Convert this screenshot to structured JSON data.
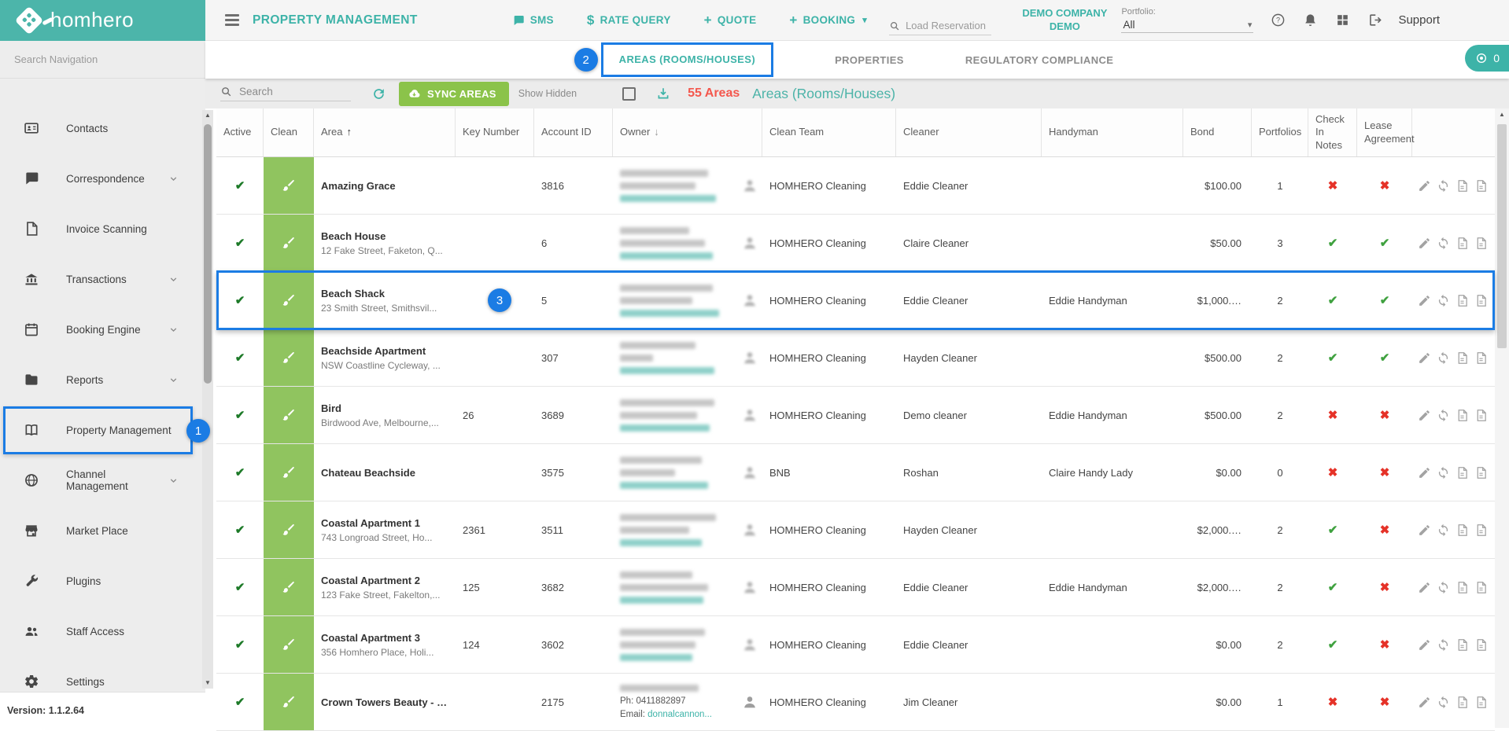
{
  "brand": {
    "name": "homhero"
  },
  "header": {
    "module_title": "PROPERTY MANAGEMENT",
    "nav": [
      {
        "label": "SMS",
        "icon": "chat-icon"
      },
      {
        "label": "RATE QUERY",
        "icon": "dollar-icon"
      },
      {
        "label": "QUOTE",
        "icon": "plus-icon"
      },
      {
        "label": "BOOKING",
        "icon": "plus-icon",
        "caret": true
      }
    ],
    "load_reservation_placeholder": "Load Reservation",
    "company_name": "DEMO COMPANY",
    "company_sub": "DEMO",
    "portfolio_label": "Portfolio:",
    "portfolio_value": "All",
    "support_label": "Support"
  },
  "sidebar": {
    "search_placeholder": "Search Navigation",
    "items": [
      {
        "label": "Contacts",
        "icon": "contacts-icon",
        "expandable": false
      },
      {
        "label": "Correspondence",
        "icon": "chat-icon",
        "expandable": true
      },
      {
        "label": "Invoice Scanning",
        "icon": "document-icon",
        "expandable": false
      },
      {
        "label": "Transactions",
        "icon": "bank-icon",
        "expandable": true
      },
      {
        "label": "Booking Engine",
        "icon": "calendar-icon",
        "expandable": true
      },
      {
        "label": "Reports",
        "icon": "folder-icon",
        "expandable": true
      },
      {
        "label": "Property Management",
        "icon": "book-icon",
        "expandable": false,
        "active": true
      },
      {
        "label": "Channel Management",
        "icon": "globe-icon",
        "expandable": true
      },
      {
        "label": "Market Place",
        "icon": "store-icon",
        "expandable": false
      },
      {
        "label": "Plugins",
        "icon": "wrench-icon",
        "expandable": false
      },
      {
        "label": "Staff Access",
        "icon": "people-icon",
        "expandable": false
      },
      {
        "label": "Settings",
        "icon": "gear-icon",
        "expandable": false
      }
    ],
    "version": "Version: 1.1.2.64"
  },
  "tabs": [
    {
      "label": "AREAS (ROOMS/HOUSES)",
      "active": true
    },
    {
      "label": "PROPERTIES",
      "active": false
    },
    {
      "label": "REGULATORY COMPLIANCE",
      "active": false
    }
  ],
  "badge": {
    "value": "0"
  },
  "toolbar": {
    "search_placeholder": "Search",
    "sync_button": "SYNC AREAS",
    "show_hidden_label": "Show Hidden",
    "count_label": "55 Areas",
    "section_title": "Areas (Rooms/Houses)"
  },
  "table": {
    "columns": [
      {
        "label": "Active"
      },
      {
        "label": "Clean"
      },
      {
        "label": "Area",
        "sort": "asc"
      },
      {
        "label": "Key Number"
      },
      {
        "label": "Account ID"
      },
      {
        "label": "Owner",
        "sort": "desc"
      },
      {
        "label": "Clean Team"
      },
      {
        "label": "Cleaner"
      },
      {
        "label": "Handyman"
      },
      {
        "label": "Bond"
      },
      {
        "label": "Portfolios"
      },
      {
        "label": "Check In Notes"
      },
      {
        "label": "Lease Agreement"
      },
      {
        "label": ""
      }
    ],
    "rows": [
      {
        "name": "Amazing Grace",
        "address": "",
        "key": "",
        "account": "3816",
        "owner": {
          "redacted": true
        },
        "clean_team": "HOMHERO Cleaning",
        "cleaner": "Eddie Cleaner",
        "handyman": "",
        "bond": "$100.00",
        "portfolios": "1",
        "check_in": "no",
        "lease": "no",
        "highlighted": false
      },
      {
        "name": "Beach House",
        "address": "12 Fake Street, Faketon, Q...",
        "key": "",
        "account": "6",
        "owner": {
          "redacted": true
        },
        "clean_team": "HOMHERO Cleaning",
        "cleaner": "Claire Cleaner",
        "handyman": "",
        "bond": "$50.00",
        "portfolios": "3",
        "check_in": "yes",
        "lease": "yes",
        "highlighted": false
      },
      {
        "name": "Beach Shack",
        "address": "23 Smith Street, Smithsvil...",
        "key": "",
        "account": "5",
        "owner": {
          "redacted": true
        },
        "clean_team": "HOMHERO Cleaning",
        "cleaner": "Eddie Cleaner",
        "handyman": "Eddie Handyman",
        "bond": "$1,000.…",
        "portfolios": "2",
        "check_in": "yes",
        "lease": "yes",
        "highlighted": true
      },
      {
        "name": "Beachside Apartment",
        "address": "NSW Coastline Cycleway, ...",
        "key": "",
        "account": "307",
        "owner": {
          "redacted": true
        },
        "clean_team": "HOMHERO Cleaning",
        "cleaner": "Hayden Cleaner",
        "handyman": "",
        "bond": "$500.00",
        "portfolios": "2",
        "check_in": "yes",
        "lease": "yes",
        "highlighted": false
      },
      {
        "name": "Bird",
        "address": "Birdwood Ave, Melbourne,...",
        "key": "26",
        "account": "3689",
        "owner": {
          "redacted": true
        },
        "clean_team": "HOMHERO Cleaning",
        "cleaner": "Demo cleaner",
        "handyman": "Eddie Handyman",
        "bond": "$500.00",
        "portfolios": "2",
        "check_in": "no",
        "lease": "no",
        "highlighted": false
      },
      {
        "name": "Chateau Beachside",
        "address": "",
        "key": "",
        "account": "3575",
        "owner": {
          "redacted": true
        },
        "clean_team": "BNB",
        "cleaner": "Roshan",
        "handyman": "Claire Handy Lady",
        "bond": "$0.00",
        "portfolios": "0",
        "check_in": "no",
        "lease": "no",
        "highlighted": false
      },
      {
        "name": "Coastal Apartment 1",
        "address": "743 Longroad Street, Ho...",
        "key": "2361",
        "account": "3511",
        "owner": {
          "redacted": true
        },
        "clean_team": "HOMHERO Cleaning",
        "cleaner": "Hayden Cleaner",
        "handyman": "",
        "bond": "$2,000.…",
        "portfolios": "2",
        "check_in": "yes",
        "lease": "no",
        "highlighted": false
      },
      {
        "name": "Coastal Apartment 2",
        "address": "123 Fake Street, Fakelton,...",
        "key": "125",
        "account": "3682",
        "owner": {
          "redacted": true
        },
        "clean_team": "HOMHERO Cleaning",
        "cleaner": "Eddie Cleaner",
        "handyman": "Eddie Handyman",
        "bond": "$2,000.…",
        "portfolios": "2",
        "check_in": "yes",
        "lease": "no",
        "highlighted": false
      },
      {
        "name": "Coastal Apartment 3",
        "address": "356 Homhero Place, Holi...",
        "key": "124",
        "account": "3602",
        "owner": {
          "redacted": true
        },
        "clean_team": "HOMHERO Cleaning",
        "cleaner": "Eddie Cleaner",
        "handyman": "",
        "bond": "$0.00",
        "portfolios": "2",
        "check_in": "yes",
        "lease": "no",
        "highlighted": false
      },
      {
        "name": "Crown Towers Beauty - 2...",
        "address": "",
        "key": "",
        "account": "2175",
        "owner": {
          "redacted": true,
          "phone": "Ph: 0411882897",
          "email_label": "Email:",
          "email": "donnalcannon..."
        },
        "clean_team": "HOMHERO Cleaning",
        "cleaner": "Jim Cleaner",
        "handyman": "",
        "bond": "$0.00",
        "portfolios": "1",
        "check_in": "no",
        "lease": "no",
        "highlighted": false
      }
    ]
  },
  "annotations": [
    {
      "number": "1",
      "target": "Property Management sidebar item"
    },
    {
      "number": "2",
      "target": "Areas (Rooms/Houses) tab"
    },
    {
      "number": "3",
      "target": "Beach Shack table row"
    }
  ],
  "colors": {
    "accent_teal": "#3db3a8",
    "logo_teal": "#4cb5aa",
    "button_green": "#8bc34a",
    "clean_band_green": "#90c45f",
    "active_check_green": "#1d7a28",
    "status_check_green": "#3fa13f",
    "status_cross_red": "#e53228",
    "count_red": "#f4574d",
    "annotation_blue": "#1b7ce4"
  }
}
